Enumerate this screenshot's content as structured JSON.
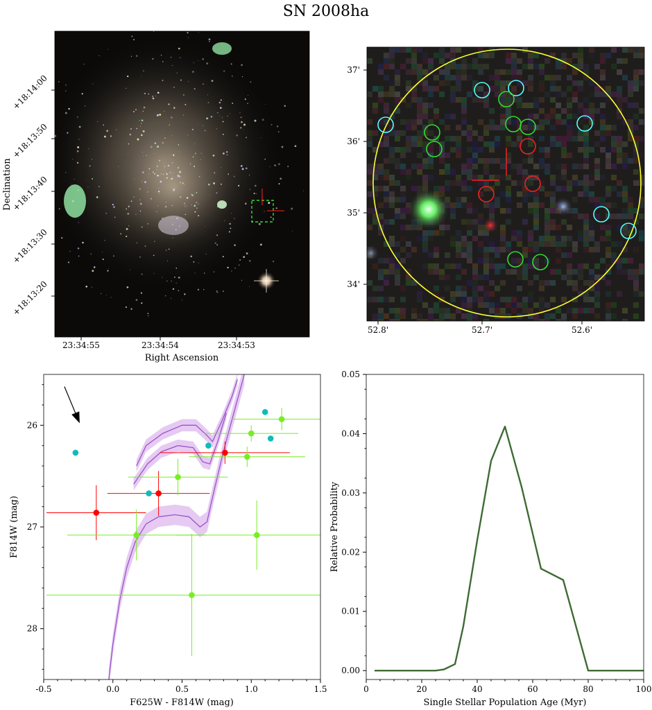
{
  "title": "SN 2008ha",
  "chart_data": [
    {
      "type": "image",
      "name": "galaxy-image",
      "xlabel": "Right Ascension",
      "ylabel": "Declination",
      "xticklabels": [
        "23:34:55",
        "23:34:54",
        "23:34:53"
      ],
      "yticklabels": [
        "+18:14:00",
        "+18:13:50",
        "+18:13:40",
        "+18:13:30",
        "+18:13:20"
      ],
      "colors": {
        "background": "#0b0a09",
        "glow": "#b8a890",
        "cluster": "#9cf0b0",
        "marker_box": "#33dd33",
        "sn_marker": "#ff2020"
      }
    },
    {
      "type": "image",
      "name": "zoom-image",
      "xticklabels": [
        "52.8'",
        "52.7'",
        "52.6'"
      ],
      "yticklabels": [
        "37'",
        "36'",
        "35'",
        "34'"
      ],
      "colors": {
        "background": "#1f1d1c",
        "aperture": "#ffff33",
        "cyan": "#55ffff",
        "green": "#33dd33",
        "red": "#ee2222"
      }
    },
    {
      "type": "scatter",
      "name": "color-magnitude-diagram",
      "xlabel": "F625W - F814W (mag)",
      "ylabel": "F814W (mag)",
      "xlim": [
        -0.5,
        1.5
      ],
      "ylim": [
        28.5,
        25.5
      ],
      "xticks": [
        -0.5,
        0.0,
        0.5,
        1.0,
        1.5
      ],
      "xticklabels": [
        "-0.5",
        "0.0",
        "0.5",
        "1.0",
        "1.5"
      ],
      "yticks": [
        26,
        27,
        28
      ],
      "yticklabels": [
        "26",
        "27",
        "28"
      ],
      "series": [
        {
          "color": "#ff0000",
          "points": [
            {
              "x": -0.12,
              "y": 26.86,
              "xerr": 0.36,
              "yerr": 0.27
            },
            {
              "x": 0.33,
              "y": 26.67,
              "xerr": 0.37,
              "yerr": 0.22
            },
            {
              "x": 0.81,
              "y": 26.27,
              "xerr": 0.47,
              "yerr": 0.11
            }
          ]
        },
        {
          "color": "#77ee22",
          "points": [
            {
              "x": 0.17,
              "y": 27.08,
              "xerr": 0.5,
              "yerr": 0.25
            },
            {
              "x": 0.47,
              "y": 26.51,
              "xerr": 0.36,
              "yerr": 0.18
            },
            {
              "x": 0.57,
              "y": 27.67,
              "xerr": 1.05,
              "yerr": 0.6
            },
            {
              "x": 0.97,
              "y": 26.31,
              "xerr": 0.42,
              "yerr": 0.1
            },
            {
              "x": 1.0,
              "y": 26.08,
              "xerr": 0.34,
              "yerr": 0.08
            },
            {
              "x": 1.04,
              "y": 27.08,
              "xerr": 0.58,
              "yerr": 0.34
            },
            {
              "x": 1.22,
              "y": 25.94,
              "xerr": 0.36,
              "yerr": 0.11
            }
          ]
        },
        {
          "color": "#11bbbb",
          "points": [
            {
              "x": -0.27,
              "y": 26.27
            },
            {
              "x": 0.26,
              "y": 26.67
            },
            {
              "x": 0.69,
              "y": 26.2
            },
            {
              "x": 1.1,
              "y": 25.87
            },
            {
              "x": 1.14,
              "y": 26.13
            }
          ]
        }
      ],
      "isochrones": [
        {
          "color": "#9955cc",
          "band": "#ddb8ee",
          "halfwidth": 0.06,
          "points": [
            [
              0.17,
              26.4
            ],
            [
              0.24,
              26.2
            ],
            [
              0.36,
              26.08
            ],
            [
              0.5,
              26.0
            ],
            [
              0.6,
              26.0
            ],
            [
              0.68,
              26.1
            ],
            [
              0.72,
              26.16
            ],
            [
              0.79,
              25.95
            ],
            [
              0.86,
              25.72
            ],
            [
              0.9,
              25.55
            ]
          ]
        },
        {
          "color": "#9955cc",
          "band": "#ddb8ee",
          "halfwidth": 0.06,
          "points": [
            [
              0.15,
              26.58
            ],
            [
              0.25,
              26.38
            ],
            [
              0.35,
              26.26
            ],
            [
              0.47,
              26.2
            ],
            [
              0.58,
              26.22
            ],
            [
              0.65,
              26.36
            ],
            [
              0.7,
              26.38
            ],
            [
              0.76,
              26.15
            ],
            [
              0.82,
              25.88
            ]
          ]
        },
        {
          "color": "#9955cc",
          "band": "#ddb8ee",
          "halfwidth": 0.1,
          "points": [
            [
              -0.03,
              28.5
            ],
            [
              0.0,
              28.15
            ],
            [
              0.05,
              27.72
            ],
            [
              0.1,
              27.4
            ],
            [
              0.16,
              27.15
            ],
            [
              0.24,
              26.97
            ],
            [
              0.33,
              26.9
            ],
            [
              0.45,
              26.88
            ],
            [
              0.55,
              26.9
            ],
            [
              0.63,
              27.0
            ],
            [
              0.68,
              26.95
            ],
            [
              0.73,
              26.65
            ],
            [
              0.8,
              26.25
            ],
            [
              0.88,
              25.85
            ],
            [
              0.95,
              25.5
            ]
          ]
        }
      ],
      "reddening_arrow": {
        "x0": -0.35,
        "y0": 25.62,
        "x1": -0.24,
        "y1": 25.98
      }
    },
    {
      "type": "line",
      "name": "age-distribution",
      "xlabel": "Single Stellar Population Age (Myr)",
      "ylabel": "Relative Probability",
      "xlim": [
        0,
        100
      ],
      "ylim": [
        -0.0015,
        0.05
      ],
      "xticks": [
        0,
        20,
        40,
        60,
        80,
        100
      ],
      "xticklabels": [
        "0",
        "20",
        "40",
        "60",
        "80",
        "100"
      ],
      "yticks": [
        0.0,
        0.01,
        0.02,
        0.03,
        0.04,
        0.05
      ],
      "yticklabels": [
        "0.00",
        "0.01",
        "0.02",
        "0.03",
        "0.04",
        "0.05"
      ],
      "color": "#3d6b33",
      "x": [
        3,
        25,
        28,
        32,
        35,
        40,
        45,
        50,
        56,
        63,
        71,
        80,
        90,
        100
      ],
      "y": [
        0,
        0,
        0.0002,
        0.0011,
        0.0075,
        0.022,
        0.0354,
        0.0412,
        0.031,
        0.0172,
        0.0153,
        0,
        0,
        0
      ]
    }
  ]
}
